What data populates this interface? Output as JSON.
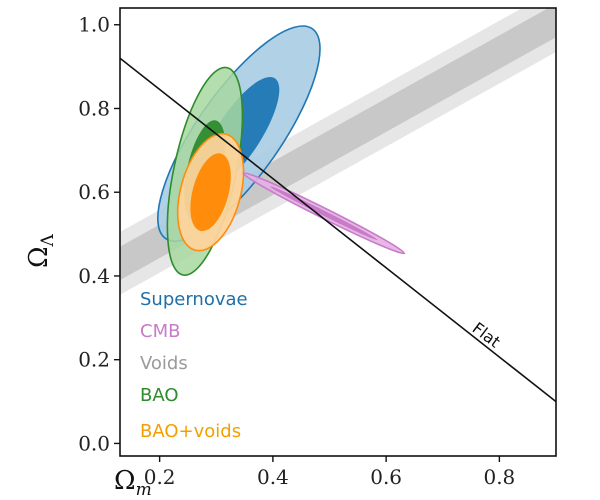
{
  "chart_data": {
    "type": "scatter",
    "xlabel": "Ω",
    "xlabel_sub": "m",
    "ylabel": "Ω",
    "ylabel_sub": "Λ",
    "xlim": [
      0.13,
      0.9
    ],
    "ylim": [
      -0.03,
      1.04
    ],
    "x_ticks": [
      0.2,
      0.4,
      0.6,
      0.8
    ],
    "x_tick_labels": [
      "0.2",
      "0.4",
      "0.6",
      "0.8"
    ],
    "y_ticks": [
      0.0,
      0.2,
      0.4,
      0.6,
      0.8,
      1.0
    ],
    "y_tick_labels": [
      "0.0",
      "0.2",
      "0.4",
      "0.6",
      "0.8",
      "1.0"
    ],
    "grid": false,
    "legend_position": "bottom-left",
    "legend": [
      {
        "label": "Supernovae",
        "color": "#1f77b4"
      },
      {
        "label": "CMB",
        "color": "#c77cc7"
      },
      {
        "label": "Voids",
        "color": "#9a9a9a"
      },
      {
        "label": "BAO",
        "color": "#2e8b2e"
      },
      {
        "label": "BAO+voids",
        "color": "#f2a000"
      }
    ],
    "annotations": [
      {
        "text": "Flat",
        "x": 0.75,
        "y": 0.27
      }
    ],
    "flat_line": {
      "x": [
        0.13,
        0.9
      ],
      "y": [
        0.92,
        0.1
      ]
    },
    "series": [
      {
        "name": "Voids",
        "kind": "band",
        "x": [
          0.13,
          0.9
        ],
        "center_y": [
          0.43,
          1.01
        ],
        "inner_halfwidth": 0.04,
        "outer_halfwidth": 0.075,
        "inner_color": "#c8c8c8",
        "outer_color": "#e6e6e6"
      },
      {
        "name": "Supernovae",
        "kind": "contour",
        "center": [
          0.34,
          0.74
        ],
        "outer_extent": {
          "x": [
            0.2,
            0.46
          ],
          "y": [
            0.49,
            0.98
          ]
        },
        "outer_color": "#a9cce4",
        "inner_color": "#1f77b4"
      },
      {
        "name": "BAO",
        "kind": "contour",
        "center": [
          0.28,
          0.65
        ],
        "outer_extent": {
          "x": [
            0.22,
            0.35
          ],
          "y": [
            0.42,
            0.9
          ]
        },
        "outer_color": "#a8d8a0",
        "inner_color": "#2e8b2e"
      },
      {
        "name": "BAO+voids",
        "kind": "contour",
        "center": [
          0.29,
          0.6
        ],
        "outer_extent": {
          "x": [
            0.23,
            0.35
          ],
          "y": [
            0.47,
            0.72
          ]
        },
        "outer_color": "#fdd49b",
        "inner_color": "#ff8c0a"
      },
      {
        "name": "CMB",
        "kind": "contour",
        "center": [
          0.49,
          0.55
        ],
        "outer_extent": {
          "x": [
            0.34,
            0.65
          ],
          "y": [
            0.44,
            0.66
          ]
        },
        "outer_color": "#e4b0e4",
        "inner_color": "#c77cc7"
      }
    ]
  }
}
